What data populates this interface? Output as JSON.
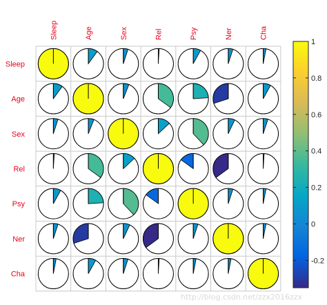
{
  "chart_data": {
    "type": "heatmap",
    "variables": [
      "Sleep",
      "Age",
      "Sex",
      "Rel",
      "Psy",
      "Ner",
      "Cha"
    ],
    "matrix": [
      [
        1.0,
        0.1,
        0.05,
        0.01,
        0.08,
        0.05,
        0.03
      ],
      [
        0.1,
        1.0,
        0.06,
        0.35,
        0.24,
        -0.3,
        0.08
      ],
      [
        0.05,
        0.06,
        1.0,
        0.13,
        0.38,
        0.07,
        0.05
      ],
      [
        0.01,
        0.35,
        0.13,
        1.0,
        -0.15,
        -0.35,
        0.01
      ],
      [
        0.08,
        0.24,
        0.38,
        -0.15,
        1.0,
        0.05,
        0.03
      ],
      [
        0.05,
        -0.3,
        0.07,
        -0.35,
        0.05,
        1.0,
        0.03
      ],
      [
        0.03,
        0.08,
        0.05,
        0.01,
        0.03,
        0.03,
        1.0
      ]
    ],
    "colorbar": {
      "min": -0.35,
      "max": 1.0,
      "ticks": [
        -0.2,
        0,
        0.2,
        0.4,
        0.6,
        0.8,
        1
      ],
      "tick_labels": [
        "-0.2",
        "0",
        "0.2",
        "0.4",
        "0.6",
        "0.8",
        "1"
      ],
      "colormap": [
        "#352a87",
        "#0363e1",
        "#1485d4",
        "#06a7c6",
        "#38b99e",
        "#92bf73",
        "#d9ba56",
        "#fcce2e",
        "#f9fb0e"
      ]
    },
    "grid": true
  },
  "watermark": "http://blog.csdn.net/zzx2016zzx"
}
